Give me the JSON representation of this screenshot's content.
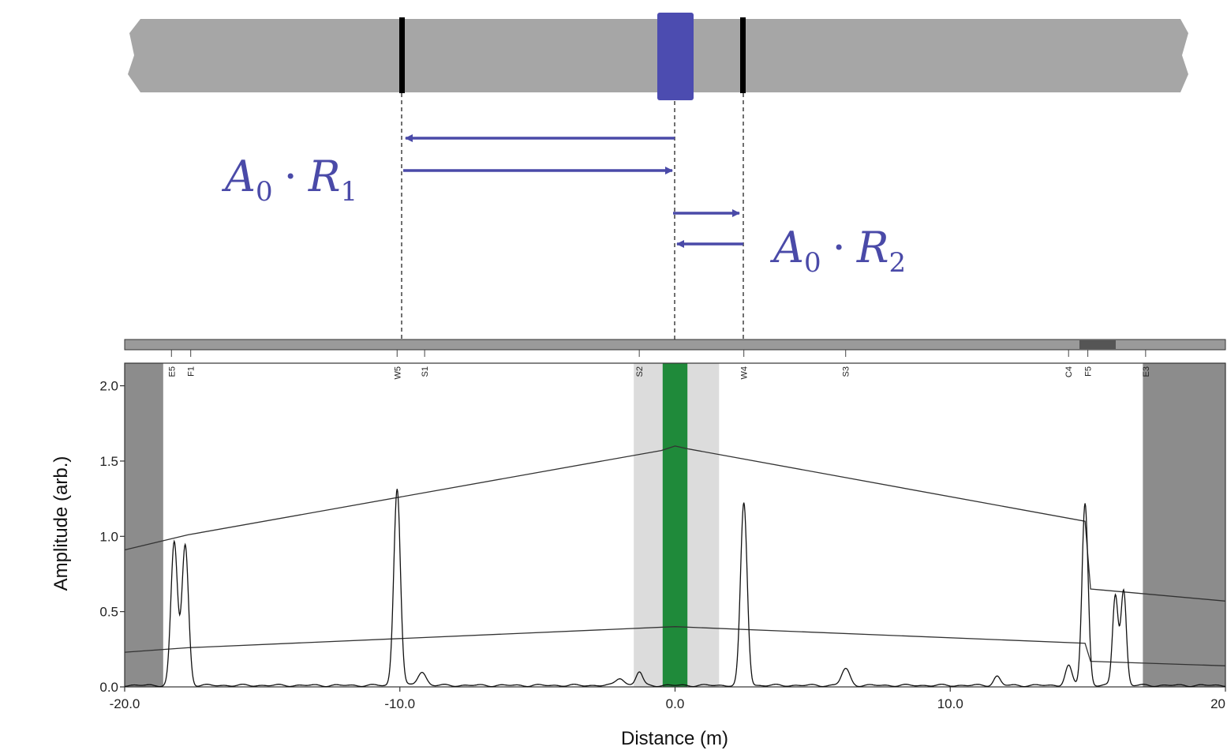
{
  "diagram": {
    "label_left": {
      "symbol": "A",
      "sub0": "0",
      "dot": "·",
      "symbol2": "R",
      "sub2": "1"
    },
    "label_right": {
      "symbol": "A",
      "sub0": "0",
      "dot": "·",
      "symbol2": "R",
      "sub2": "2"
    },
    "colors": {
      "pipe": "#a6a6a6",
      "source": "#4c4cb0",
      "reflector": "#000000",
      "arrow": "#4a4aa8"
    }
  },
  "chart_data": {
    "type": "line",
    "xlabel": "Distance (m)",
    "ylabel": "Amplitude (arb.)",
    "xlim": [
      -20,
      20
    ],
    "ylim": [
      0,
      2.15
    ],
    "x_ticks": [
      {
        "value": -20,
        "label": "-20.0"
      },
      {
        "value": -10,
        "label": "-10.0"
      },
      {
        "value": 0,
        "label": "0.0"
      },
      {
        "value": 10,
        "label": "10.0"
      },
      {
        "value": 20,
        "label": "20"
      }
    ],
    "y_ticks": [
      {
        "value": 0.0,
        "label": "0.0"
      },
      {
        "value": 0.5,
        "label": "0.5"
      },
      {
        "value": 1.0,
        "label": "1.0"
      },
      {
        "value": 1.5,
        "label": "1.5"
      },
      {
        "value": 2.0,
        "label": "2.0"
      }
    ],
    "shaded_regions": [
      {
        "x0": -20,
        "x1": -18.6,
        "color": "#8c8c8c"
      },
      {
        "x0": 17.0,
        "x1": 20,
        "color": "#8c8c8c"
      },
      {
        "x0": -1.5,
        "x1": 1.6,
        "color": "#dcdcdc"
      },
      {
        "x0": -0.45,
        "x1": 0.45,
        "color": "#1f8a3a"
      }
    ],
    "feature_labels": [
      {
        "x": -18.3,
        "label": "E5"
      },
      {
        "x": -17.6,
        "label": "F1"
      },
      {
        "x": -10.1,
        "label": "W5"
      },
      {
        "x": -9.1,
        "label": "S1"
      },
      {
        "x": -1.3,
        "label": "S2"
      },
      {
        "x": 2.5,
        "label": "W4"
      },
      {
        "x": 6.2,
        "label": "S3"
      },
      {
        "x": 14.3,
        "label": "C4"
      },
      {
        "x": 15.0,
        "label": "F5"
      },
      {
        "x": 17.1,
        "label": "E3"
      }
    ],
    "series": [
      {
        "role": "upper-envelope",
        "color": "#333333",
        "points": [
          [
            -20,
            0.91
          ],
          [
            -17.7,
            1.01
          ],
          [
            -0.5,
            1.57
          ],
          [
            0,
            1.6
          ],
          [
            0.5,
            1.58
          ],
          [
            14.9,
            1.1
          ],
          [
            15.1,
            0.65
          ],
          [
            20,
            0.57
          ]
        ]
      },
      {
        "role": "lower-envelope",
        "color": "#333333",
        "points": [
          [
            -20,
            0.23
          ],
          [
            -17.7,
            0.26
          ],
          [
            0,
            0.4
          ],
          [
            14.9,
            0.29
          ],
          [
            15.1,
            0.17
          ],
          [
            20,
            0.14
          ]
        ]
      },
      {
        "role": "signal",
        "color": "#111111",
        "peaks": [
          {
            "x": -18.2,
            "height": 0.95,
            "width": 0.12
          },
          {
            "x": -17.8,
            "height": 0.93,
            "width": 0.12
          },
          {
            "x": -10.1,
            "height": 1.31,
            "width": 0.12
          },
          {
            "x": -9.2,
            "height": 0.09,
            "width": 0.15
          },
          {
            "x": -2.0,
            "height": 0.05,
            "width": 0.15
          },
          {
            "x": -1.3,
            "height": 0.09,
            "width": 0.12
          },
          {
            "x": 2.5,
            "height": 1.21,
            "width": 0.12
          },
          {
            "x": 6.2,
            "height": 0.11,
            "width": 0.15
          },
          {
            "x": 11.7,
            "height": 0.06,
            "width": 0.12
          },
          {
            "x": 14.3,
            "height": 0.13,
            "width": 0.12
          },
          {
            "x": 14.9,
            "height": 1.21,
            "width": 0.11
          },
          {
            "x": 16.0,
            "height": 0.6,
            "width": 0.1
          },
          {
            "x": 16.3,
            "height": 0.63,
            "width": 0.1
          }
        ],
        "baseline": 0.01
      }
    ],
    "grid": false,
    "legend": "none"
  }
}
